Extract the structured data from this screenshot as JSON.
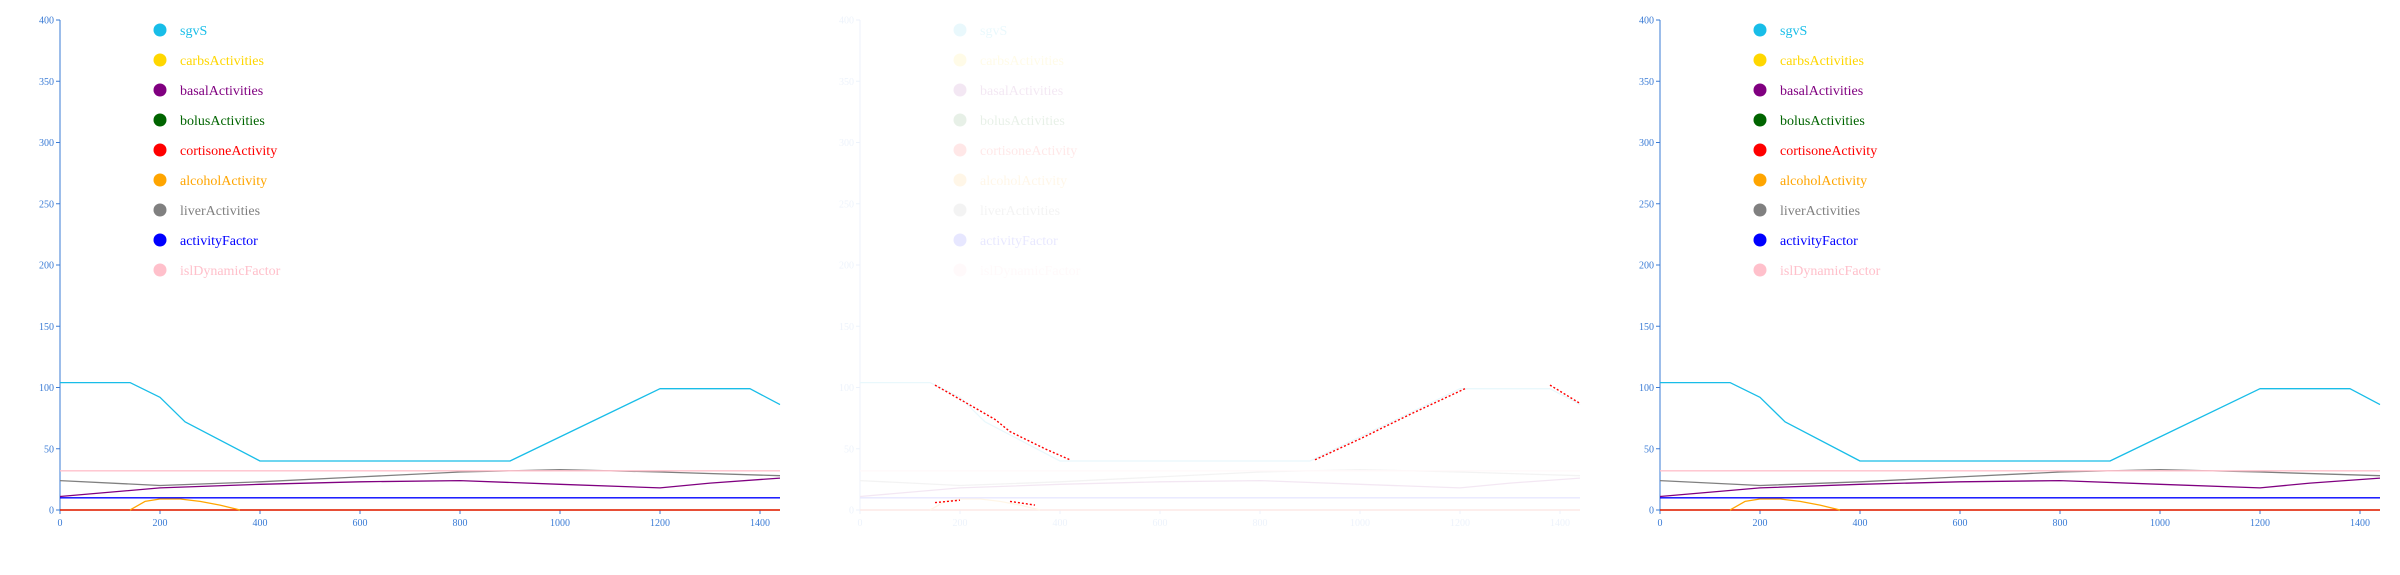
{
  "chart_data": {
    "type": "line",
    "xlim": [
      0,
      1440
    ],
    "ylim": [
      0,
      400
    ],
    "xticks": [
      0,
      200,
      400,
      600,
      800,
      1000,
      1200,
      1400
    ],
    "yticks": [
      0,
      50,
      100,
      150,
      200,
      250,
      300,
      350,
      400
    ],
    "axis_color": "#3a7bd5",
    "panels": [
      {
        "name": "left",
        "faded": false,
        "show_cortisone_only": false
      },
      {
        "name": "middle",
        "faded": true,
        "show_cortisone_only": true
      },
      {
        "name": "right",
        "faded": false,
        "show_cortisone_only": false
      }
    ],
    "series": [
      {
        "name": "sgvS",
        "color": "#18bde8",
        "style": "solid",
        "x": [
          0,
          140,
          200,
          250,
          400,
          900,
          1200,
          1380,
          1440
        ],
        "y": [
          104,
          104,
          92,
          72,
          40,
          40,
          99,
          99,
          86
        ]
      },
      {
        "name": "carbsActivities",
        "color": "#ffd700",
        "style": "solid",
        "x": [
          0,
          1440
        ],
        "y": [
          0,
          0
        ]
      },
      {
        "name": "basalActivities",
        "color": "#800080",
        "style": "solid",
        "x": [
          0,
          200,
          400,
          600,
          800,
          1000,
          1200,
          1300,
          1440
        ],
        "y": [
          11,
          18,
          21,
          23,
          24,
          21,
          18,
          22,
          26
        ]
      },
      {
        "name": "bolusActivities",
        "color": "#006400",
        "style": "solid",
        "x": [
          0,
          1440
        ],
        "y": [
          0,
          0
        ]
      },
      {
        "name": "cortisoneActivity",
        "color": "#ff0000",
        "style": "solid",
        "x": [
          0,
          1440
        ],
        "y": [
          0,
          0
        ]
      },
      {
        "name": "alcoholActivity",
        "color": "#ffa500",
        "style": "solid",
        "x": [
          140,
          170,
          200,
          240,
          280,
          320,
          360
        ],
        "y": [
          0,
          7,
          9,
          9,
          7,
          4,
          0
        ]
      },
      {
        "name": "liverActivities",
        "color": "#808080",
        "style": "solid",
        "x": [
          0,
          200,
          400,
          600,
          800,
          1000,
          1200,
          1440
        ],
        "y": [
          24,
          20,
          23,
          27,
          31,
          33,
          31,
          28
        ]
      },
      {
        "name": "activityFactor",
        "color": "#0000ff",
        "style": "solid",
        "x": [
          0,
          1440
        ],
        "y": [
          10,
          10
        ]
      },
      {
        "name": "islDynamicFactor",
        "color": "#ffc0cb",
        "style": "solid",
        "x": [
          0,
          1440
        ],
        "y": [
          32,
          32
        ]
      }
    ],
    "middle_overlay": [
      {
        "name": "cortisone-trace-1",
        "x": [
          150,
          210,
          270,
          300,
          370,
          420
        ],
        "y": [
          102,
          88,
          74,
          64,
          50,
          41
        ]
      },
      {
        "name": "cortisone-trace-2",
        "x": [
          910,
          1000,
          1100,
          1210
        ],
        "y": [
          41,
          58,
          78,
          99
        ]
      },
      {
        "name": "cortisone-trace-3",
        "x": [
          1380,
          1440
        ],
        "y": [
          102,
          87
        ]
      },
      {
        "name": "cortisone-trace-4",
        "x": [
          150,
          200
        ],
        "y": [
          6,
          8
        ]
      },
      {
        "name": "cortisone-trace-5",
        "x": [
          300,
          350
        ],
        "y": [
          7,
          4
        ]
      }
    ]
  }
}
